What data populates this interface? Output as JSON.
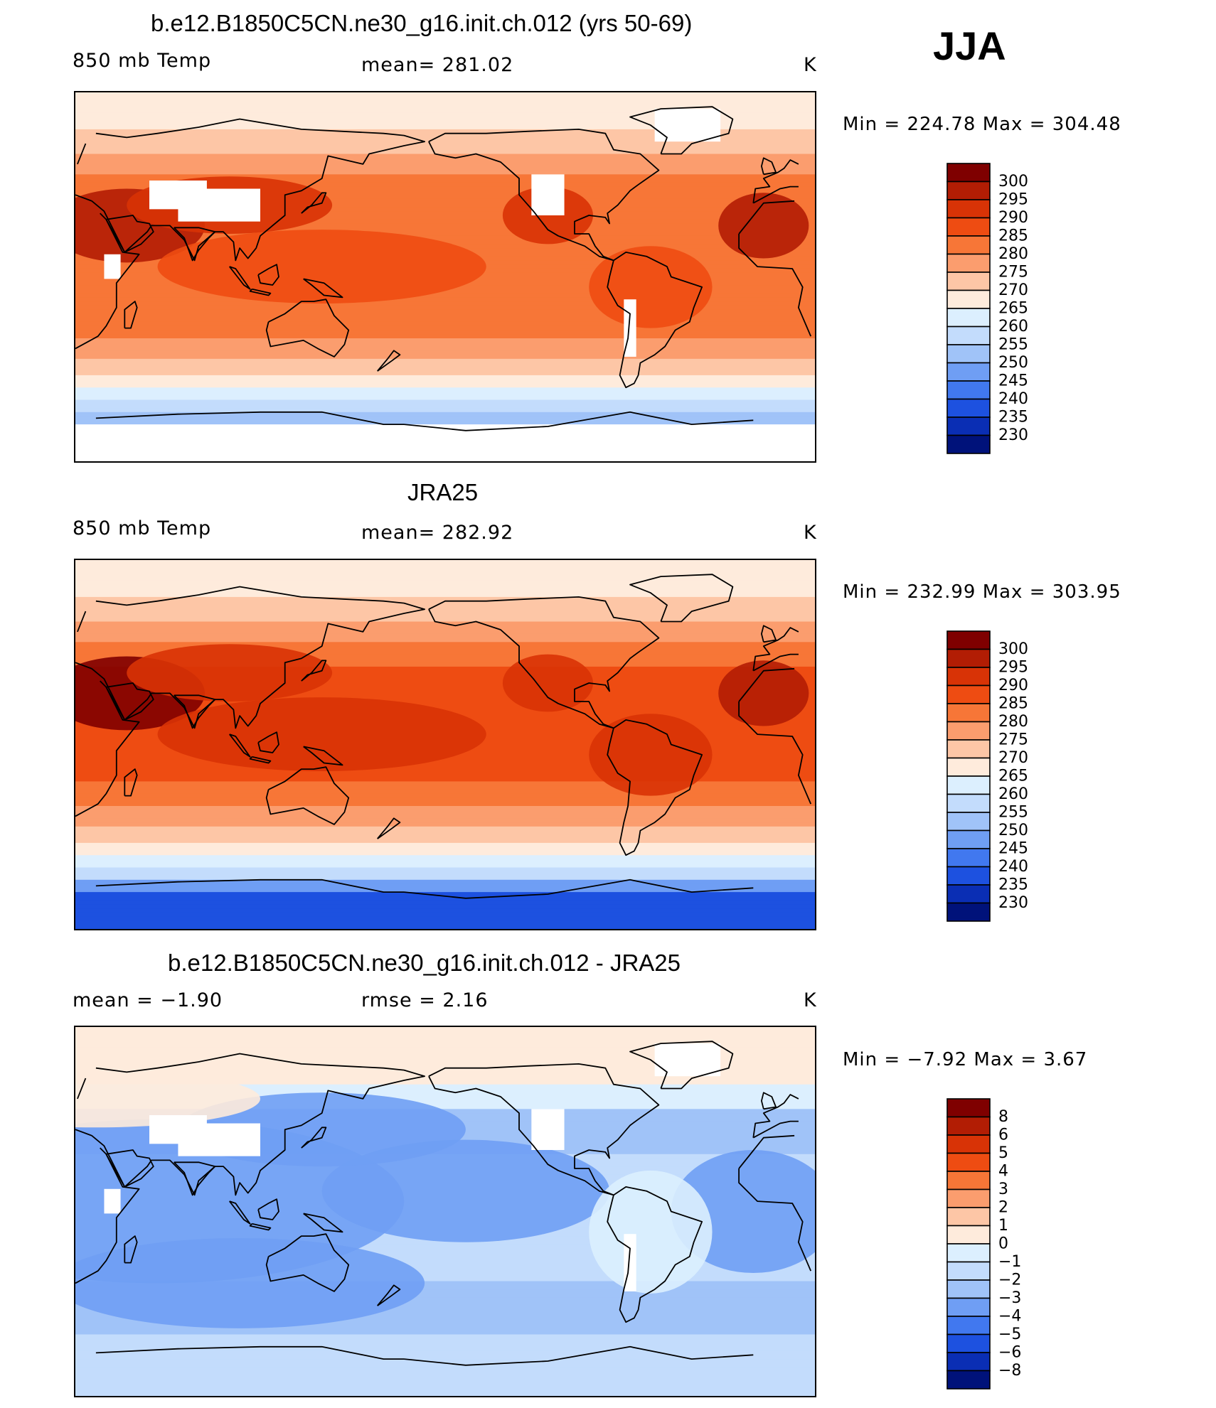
{
  "season": "JJA",
  "panels": [
    {
      "title": "b.e12.B1850C5CN.ne30_g16.init.ch.012 (yrs 50-69)",
      "left_label": "850 mb Temp",
      "center_label": "mean=  281.02",
      "units": "K",
      "minmax": "Min  =  224.78  Max  =  304.48",
      "colorbar_ticks": [
        "300",
        "295",
        "290",
        "285",
        "280",
        "275",
        "270",
        "265",
        "260",
        "255",
        "250",
        "245",
        "240",
        "235",
        "230"
      ],
      "field_type": "model"
    },
    {
      "title": "JRA25",
      "left_label": "850 mb Temp",
      "center_label": "mean=  282.92",
      "units": "K",
      "minmax": "Min  =  232.99  Max  =  303.95",
      "colorbar_ticks": [
        "300",
        "295",
        "290",
        "285",
        "280",
        "275",
        "270",
        "265",
        "260",
        "255",
        "250",
        "245",
        "240",
        "235",
        "230"
      ],
      "field_type": "obs"
    },
    {
      "title": "b.e12.B1850C5CN.ne30_g16.init.ch.012 - JRA25",
      "left_label": "mean =     −1.90",
      "center_label": "rmse =      2.16",
      "units": "K",
      "minmax": "Min  =     −7.92  Max  =      3.67",
      "colorbar_ticks": [
        "8",
        "6",
        "5",
        "4",
        "3",
        "2",
        "1",
        "0",
        "−1",
        "−2",
        "−3",
        "−4",
        "−5",
        "−6",
        "−8"
      ],
      "field_type": "diff"
    }
  ],
  "colors": {
    "palette": [
      "#7f0000",
      "#b21d04",
      "#d83306",
      "#ee4c12",
      "#f77637",
      "#fb9d6e",
      "#fdc6a6",
      "#feebdc",
      "#dceffe",
      "#c3dcfc",
      "#a0c3f8",
      "#6f9ef4",
      "#4178ef",
      "#1d51e0",
      "#0a2eb4",
      "#00127a"
    ]
  }
}
